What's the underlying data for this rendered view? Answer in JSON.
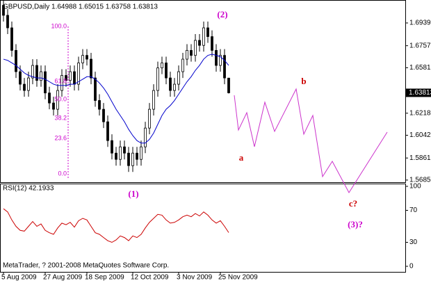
{
  "chart_data": [
    {
      "type": "candlestick",
      "title": "GBPUSD,Daily  1.64988 1.65015 1.63758 1.63813",
      "categories": [
        "5 Aug 2009",
        null,
        null,
        null,
        null,
        null,
        null,
        null,
        null,
        null,
        "27 Aug 2009",
        null,
        null,
        null,
        null,
        null,
        null,
        null,
        null,
        null,
        "18 Sep 2009",
        null,
        null,
        null,
        null,
        null,
        null,
        null,
        null,
        null,
        null,
        "12 Oct 2009",
        null,
        null,
        null,
        null,
        null,
        null,
        null,
        null,
        null,
        null,
        "3 Nov 2009",
        null,
        null,
        null,
        null,
        null,
        null,
        null,
        null,
        null,
        "25 Nov 2009",
        null,
        null
      ],
      "open": [
        1.708,
        1.7,
        1.69,
        1.672,
        1.655,
        1.645,
        1.64,
        1.65,
        1.66,
        1.648,
        1.655,
        1.638,
        1.63,
        1.625,
        1.64,
        1.652,
        1.648,
        1.655,
        1.645,
        1.662,
        1.668,
        1.665,
        1.65,
        1.632,
        1.625,
        1.615,
        1.6,
        1.59,
        1.585,
        1.595,
        1.59,
        1.58,
        1.59,
        1.585,
        1.595,
        1.61,
        1.625,
        1.64,
        1.658,
        1.662,
        1.65,
        1.64,
        1.645,
        1.655,
        1.665,
        1.672,
        1.668,
        1.68,
        1.676,
        1.69,
        1.683,
        1.672,
        1.66,
        1.668,
        1.64988
      ],
      "high": [
        1.713,
        1.705,
        1.695,
        1.677,
        1.66,
        1.65,
        1.655,
        1.665,
        1.665,
        1.66,
        1.66,
        1.643,
        1.635,
        1.645,
        1.657,
        1.657,
        1.66,
        1.66,
        1.667,
        1.673,
        1.673,
        1.67,
        1.655,
        1.637,
        1.63,
        1.62,
        1.605,
        1.595,
        1.6,
        1.6,
        1.595,
        1.595,
        1.595,
        1.6,
        1.615,
        1.63,
        1.645,
        1.663,
        1.667,
        1.667,
        1.655,
        1.65,
        1.66,
        1.67,
        1.677,
        1.677,
        1.685,
        1.685,
        1.695,
        1.695,
        1.688,
        1.677,
        1.673,
        1.673,
        1.65015
      ],
      "low": [
        1.695,
        1.685,
        1.667,
        1.65,
        1.64,
        1.635,
        1.635,
        1.645,
        1.643,
        1.643,
        1.633,
        1.625,
        1.62,
        1.62,
        1.635,
        1.643,
        1.643,
        1.64,
        1.64,
        1.657,
        1.66,
        1.645,
        1.627,
        1.62,
        1.61,
        1.595,
        1.585,
        1.58,
        1.58,
        1.585,
        1.575,
        1.575,
        1.58,
        1.58,
        1.59,
        1.605,
        1.62,
        1.635,
        1.653,
        1.645,
        1.635,
        1.635,
        1.64,
        1.65,
        1.66,
        1.663,
        1.663,
        1.671,
        1.671,
        1.678,
        1.667,
        1.655,
        1.655,
        1.645,
        1.63758
      ],
      "close": [
        1.7,
        1.69,
        1.672,
        1.655,
        1.645,
        1.64,
        1.65,
        1.66,
        1.648,
        1.655,
        1.638,
        1.63,
        1.625,
        1.64,
        1.652,
        1.648,
        1.655,
        1.645,
        1.662,
        1.668,
        1.665,
        1.65,
        1.632,
        1.625,
        1.615,
        1.6,
        1.59,
        1.585,
        1.595,
        1.59,
        1.58,
        1.59,
        1.585,
        1.595,
        1.61,
        1.625,
        1.64,
        1.658,
        1.662,
        1.65,
        1.64,
        1.645,
        1.655,
        1.665,
        1.672,
        1.668,
        1.68,
        1.676,
        1.69,
        1.683,
        1.672,
        1.66,
        1.668,
        1.65,
        1.63813
      ],
      "overlays": [
        {
          "color": "#0000cc",
          "values": [
            1.665,
            1.664,
            1.662,
            1.66,
            1.657,
            1.654,
            1.652,
            1.651,
            1.65,
            1.65,
            1.649,
            1.647,
            1.645,
            1.644,
            1.644,
            1.644,
            1.645,
            1.645,
            1.647,
            1.649,
            1.651,
            1.651,
            1.649,
            1.646,
            1.642,
            1.637,
            1.631,
            1.625,
            1.62,
            1.615,
            1.609,
            1.604,
            1.6,
            1.598,
            1.598,
            1.601,
            1.606,
            1.613,
            1.62,
            1.625,
            1.628,
            1.632,
            1.637,
            1.642,
            1.647,
            1.651,
            1.656,
            1.66,
            1.665,
            1.668,
            1.669,
            1.668,
            1.667,
            1.664,
            1.66
          ]
        }
      ],
      "ylim": [
        1.5668,
        1.7111
      ],
      "yticks": [
        {
          "value": 1.6939,
          "label": "1.69390"
        },
        1.67575,
        1.65815,
        1.62185,
        1.60425,
        {
          "value": 1.5861,
          "label": "1.58610"
        },
        {
          "value": 1.5685,
          "label": "1.56850"
        }
      ],
      "fibo_labels": [
        "100.0",
        "61.8",
        "50.0",
        "38.2",
        "23.6",
        "0.0"
      ],
      "annotations": [
        "(2)",
        "b",
        "a",
        "(1)",
        "c?",
        "(3)?"
      ]
    },
    {
      "type": "line",
      "title": "RSI(12) 42.1933",
      "color": "#cc0000",
      "values": [
        72,
        68,
        58,
        50,
        45,
        44,
        50,
        56,
        50,
        53,
        45,
        42,
        40,
        48,
        54,
        52,
        55,
        49,
        57,
        60,
        58,
        50,
        42,
        40,
        36,
        32,
        30,
        33,
        38,
        36,
        32,
        38,
        36,
        40,
        48,
        55,
        60,
        65,
        64,
        58,
        54,
        55,
        58,
        62,
        64,
        62,
        66,
        63,
        68,
        64,
        58,
        54,
        57,
        50,
        42.1933
      ],
      "ylim": [
        0,
        100
      ],
      "yticks": [
        100,
        70,
        30,
        0
      ]
    }
  ],
  "footer": "MetaTrader, ? 2001-2008 MetaQuotes Software Corp."
}
